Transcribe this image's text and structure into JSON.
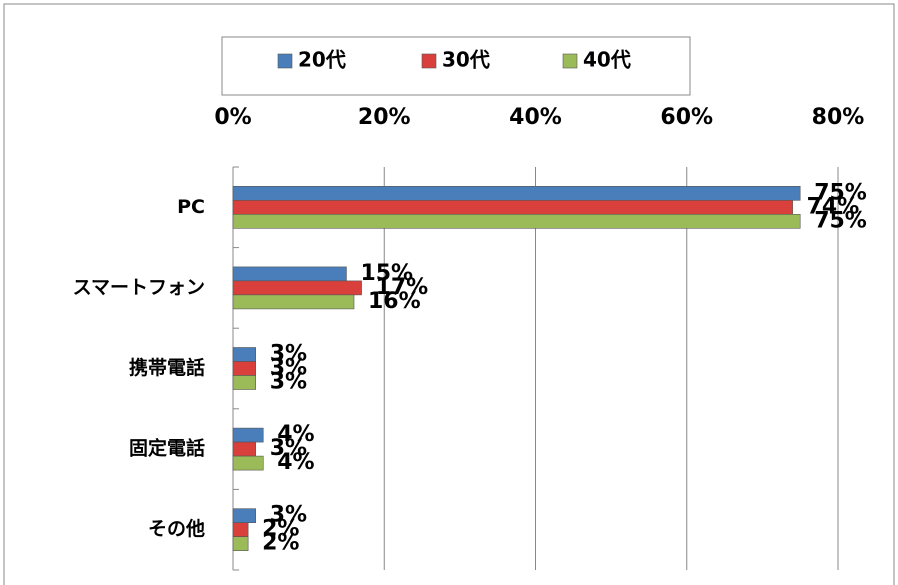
{
  "chart_data": {
    "type": "bar",
    "orientation": "horizontal",
    "categories": [
      "PC",
      "スマートフォン",
      "携帯電話",
      "固定電話",
      "その他"
    ],
    "series": [
      {
        "name": "20代",
        "color": "#4a7ebb",
        "values": [
          75,
          15,
          3,
          4,
          3
        ],
        "value_labels": [
          "75%",
          "15%",
          "3%",
          "4%",
          "3%"
        ]
      },
      {
        "name": "30代",
        "color": "#d9403b",
        "values": [
          74,
          17,
          3,
          3,
          2
        ],
        "value_labels": [
          "74%",
          "17%",
          "3%",
          "3%",
          "2%"
        ]
      },
      {
        "name": "40代",
        "color": "#9bbb59",
        "values": [
          75,
          16,
          3,
          4,
          2
        ],
        "value_labels": [
          "75%",
          "16%",
          "3%",
          "4%",
          "2%"
        ]
      }
    ],
    "xlim": [
      0,
      80
    ],
    "xticks": [
      {
        "value": 0,
        "label": "0%"
      },
      {
        "value": 20,
        "label": "20%"
      },
      {
        "value": 40,
        "label": "40%"
      },
      {
        "value": 60,
        "label": "60%"
      },
      {
        "value": 80,
        "label": "80%"
      }
    ],
    "grid": true,
    "legend": "top"
  }
}
